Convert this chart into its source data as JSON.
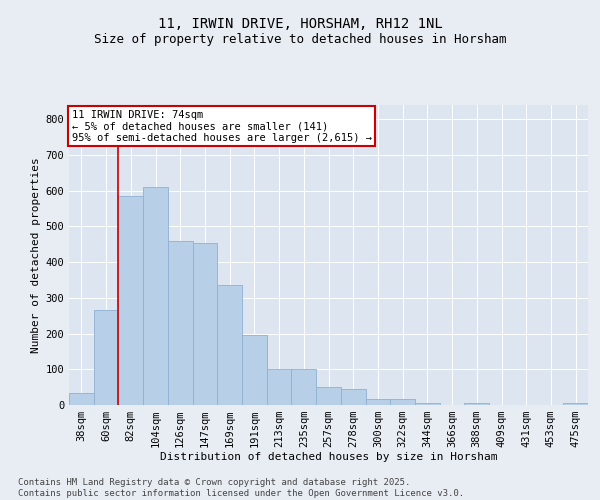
{
  "title": "11, IRWIN DRIVE, HORSHAM, RH12 1NL",
  "subtitle": "Size of property relative to detached houses in Horsham",
  "xlabel": "Distribution of detached houses by size in Horsham",
  "ylabel": "Number of detached properties",
  "categories": [
    "38sqm",
    "60sqm",
    "82sqm",
    "104sqm",
    "126sqm",
    "147sqm",
    "169sqm",
    "191sqm",
    "213sqm",
    "235sqm",
    "257sqm",
    "278sqm",
    "300sqm",
    "322sqm",
    "344sqm",
    "366sqm",
    "388sqm",
    "409sqm",
    "431sqm",
    "453sqm",
    "475sqm"
  ],
  "values": [
    35,
    265,
    585,
    610,
    460,
    455,
    335,
    195,
    100,
    100,
    50,
    45,
    18,
    18,
    5,
    0,
    5,
    0,
    0,
    0,
    5
  ],
  "bar_color": "#b8cfe8",
  "bar_edge_color": "#8fb0d4",
  "red_line_x": 1.5,
  "annotation_line1": "11 IRWIN DRIVE: 74sqm",
  "annotation_line2": "← 5% of detached houses are smaller (141)",
  "annotation_line3": "95% of semi-detached houses are larger (2,615) →",
  "annotation_box_facecolor": "#ffffff",
  "annotation_box_edgecolor": "#cc0000",
  "red_line_color": "#cc0000",
  "ylim": [
    0,
    840
  ],
  "yticks": [
    0,
    100,
    200,
    300,
    400,
    500,
    600,
    700,
    800
  ],
  "background_color": "#e8edf4",
  "plot_bg_color": "#dce5f0",
  "grid_color": "#ffffff",
  "title_fontsize": 10,
  "subtitle_fontsize": 9,
  "xlabel_fontsize": 8,
  "ylabel_fontsize": 8,
  "tick_fontsize": 7.5,
  "annotation_fontsize": 7.5,
  "footer_fontsize": 6.5,
  "footer": "Contains HM Land Registry data © Crown copyright and database right 2025.\nContains public sector information licensed under the Open Government Licence v3.0."
}
